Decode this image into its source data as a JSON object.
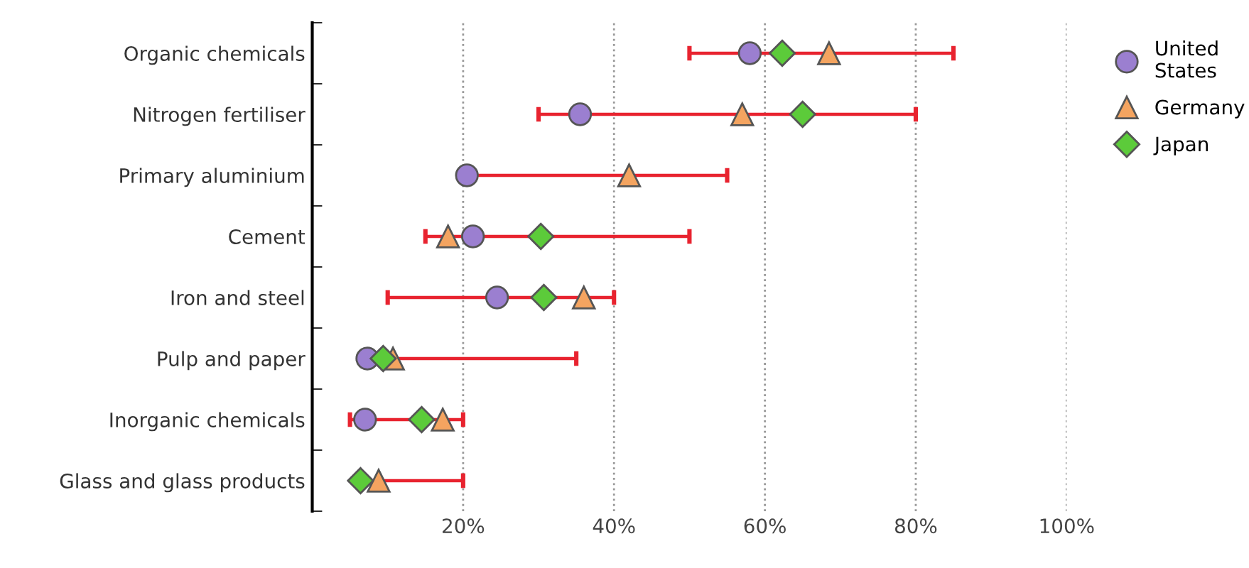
{
  "chart_data": {
    "type": "scatter",
    "orientation": "horizontal",
    "categories": [
      "Organic chemicals",
      "Nitrogen fertiliser",
      "Primary aluminium",
      "Cement",
      "Iron and steel",
      "Pulp and paper",
      "Inorganic chemicals",
      "Glass and glass products"
    ],
    "series": [
      {
        "type": "bar",
        "color": "#e8232f",
        "base": [
          50,
          30,
          20.5,
          15,
          10,
          7,
          5,
          6.5
        ],
        "values": [
          35,
          50,
          34.5,
          35,
          30,
          28,
          15,
          13.5
        ]
      },
      {
        "name": "United States",
        "marker": "circle",
        "color": "#9b7fd0",
        "values": [
          58,
          35.5,
          20.5,
          21.3,
          24.5,
          7.3,
          7,
          null
        ]
      },
      {
        "name": "Germany",
        "marker": "triangle",
        "color": "#f4a460",
        "values": [
          68.5,
          57,
          42,
          18,
          36,
          10.7,
          17.3,
          8.8
        ]
      },
      {
        "name": "Japan",
        "marker": "diamond",
        "color": "#5ccb3a",
        "values": [
          62.3,
          65,
          null,
          30.3,
          30.7,
          9.4,
          14.5,
          6.4
        ]
      }
    ],
    "xlim": [
      0,
      100
    ],
    "xticks": [
      {
        "value": 20,
        "label": "20%"
      },
      {
        "value": 40,
        "label": "40%"
      },
      {
        "value": 60,
        "label": "60%"
      },
      {
        "value": 80,
        "label": "80%"
      },
      {
        "value": 100,
        "label": "100%"
      }
    ],
    "grid": "x",
    "legend": "top right"
  }
}
